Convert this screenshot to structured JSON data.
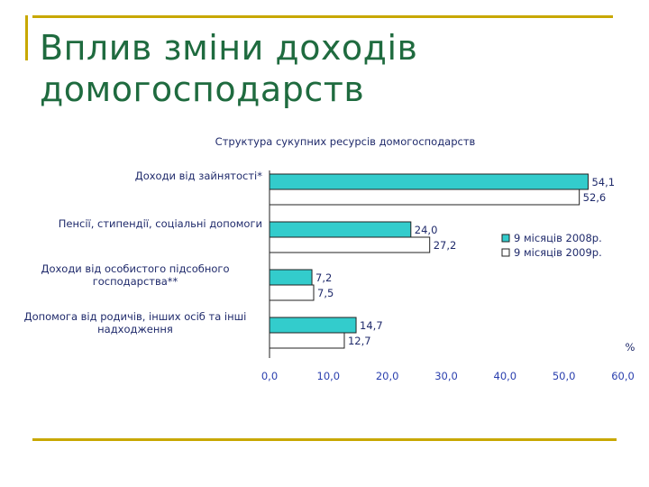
{
  "slide": {
    "title": "Вплив зміни доходів\nдомогосподарств"
  },
  "colors": {
    "series_2008": "#33cccc",
    "series_2009": "#ffffff",
    "text": "#1f2a6b",
    "title": "#1f6b3f",
    "accent_rule": "#c8a800"
  },
  "chart_data": {
    "type": "bar",
    "orientation": "horizontal",
    "title": "Структура сукупних ресурсів домогосподарств",
    "categories": [
      [
        "Доходи від зайнятості*"
      ],
      [
        "Пенсії, стипендії, соціальні допомоги"
      ],
      [
        "Доходи від особистого підсобного",
        "господарства**"
      ],
      [
        "Допомога від родичів, інших осіб та інші",
        "надходження"
      ]
    ],
    "series": [
      {
        "name": "9 місяців 2008р.",
        "values": [
          54.1,
          24.0,
          7.2,
          14.7
        ],
        "labels": [
          "54,1",
          "24,0",
          "7,2",
          "14,7"
        ]
      },
      {
        "name": "9 місяців 2009р.",
        "values": [
          52.6,
          27.2,
          7.5,
          12.7
        ],
        "labels": [
          "52,6",
          "27,2",
          "7,5",
          "12,7"
        ]
      }
    ],
    "xlim": [
      0,
      60
    ],
    "xticks": [
      "0,0",
      "10,0",
      "20,0",
      "30,0",
      "40,0",
      "50,0",
      "60,0"
    ],
    "unit_label": "%",
    "legend_position": "right",
    "grid": false
  }
}
